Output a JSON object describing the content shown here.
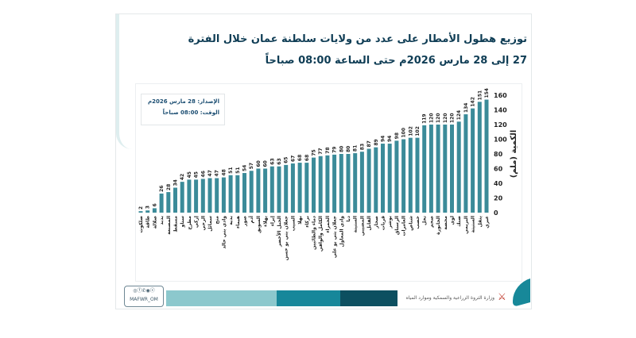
{
  "title": "توزيع هطول الأمطار على عدد من ولايات سلطنة عمان خلال الفترة",
  "subtitle": "27 إلى 28 مارس 2026م حتى الساعة 08:00 صباحاً",
  "info": {
    "issue": "الإصدار: 28 مارس 2026م",
    "time": "الوقت: 08:00 صباحاً"
  },
  "footer": {
    "ministry": "وزارة الثروة الزراعية والسمكية وموارد المياه",
    "handle": "MAFWR_OM",
    "social_icons": "instagram x whatsapp youtube facebook"
  },
  "colors": {
    "bar": "#3b8b99",
    "title": "#0f3d55",
    "footer_light": "#8cc8cd",
    "footer_mid": "#17879a",
    "footer_dark": "#0c4f60"
  },
  "chart_data": {
    "type": "bar",
    "title": "توزيع هطول الأمطار على عدد من ولايات سلطنة عمان خلال الفترة",
    "ylabel": "الكمية (ملم)",
    "xlabel": "",
    "ylim": [
      0,
      160
    ],
    "yticks": [
      0,
      20,
      40,
      60,
      80,
      100,
      120,
      140,
      160
    ],
    "grid": false,
    "categories": [
      "ضلكوت",
      "طاقة",
      "صلالة",
      "بدبد",
      "المصنعة",
      "مسقط",
      "سناو",
      "مطرح",
      "إزكي",
      "الرحي",
      "سمائل",
      "منح",
      "وادي بني خالد",
      "بدية",
      "هيماء",
      "صور",
      "أدم",
      "السويق",
      "بهلاء",
      "إبراء",
      "الجبل الأخضر",
      "جعلان بني بو حسن",
      "السيب",
      "بهلا",
      "بركاء",
      "دماء والطائيين",
      "الكامل والوافي",
      "الحمراء",
      "جعلان بني بو علي",
      "وادي المعاول",
      "دبا",
      "السنينة",
      "المضيبي",
      "القابل",
      "صحار",
      "قريات",
      "بوشر",
      "الرستاق",
      "العامرات",
      "شناص",
      "خصب",
      "نخل",
      "صحم",
      "الخابورة",
      "محضة",
      "لوى",
      "ضنك",
      "البريمي",
      "السنينة",
      "ينقل",
      "عبري"
    ],
    "values": [
      2,
      3,
      6,
      26,
      28,
      34,
      42,
      45,
      45,
      46,
      47,
      47,
      48,
      51,
      51,
      54,
      57,
      60,
      60,
      63,
      63,
      65,
      67,
      68,
      68,
      75,
      77,
      78,
      79,
      80,
      80,
      81,
      83,
      87,
      89,
      94,
      94,
      98,
      100,
      102,
      102,
      119,
      120,
      120,
      120,
      120,
      124,
      134,
      142,
      151,
      154
    ]
  }
}
